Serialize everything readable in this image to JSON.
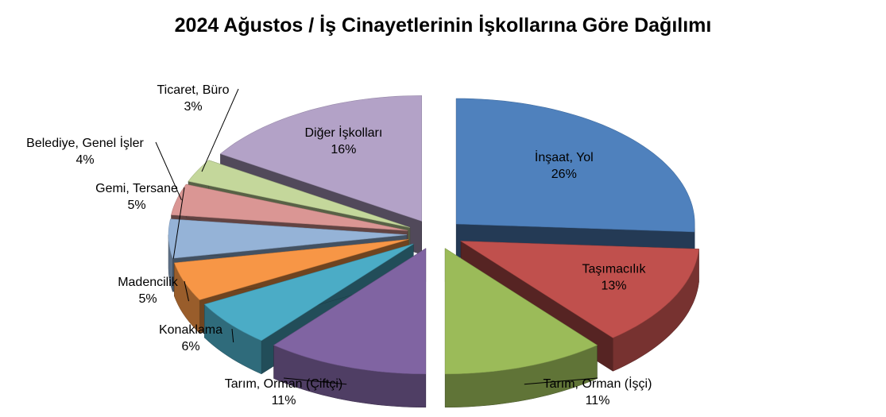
{
  "chart_data": {
    "type": "pie",
    "title": "2024 Ağustos / İş Cinayetlerinin İşkollarına Göre Dağılımı",
    "view": "3d-exploded",
    "categories": [
      "İnşaat, Yol",
      "Taşımacılık",
      "Tarım, Orman (İşçi)",
      "Tarım, Orman (Çiftçi)",
      "Konaklama",
      "Madencilik",
      "Gemi, Tersane",
      "Belediye, Genel İşler",
      "Ticaret, Büro",
      "Diğer İşkolları"
    ],
    "values": [
      26,
      13,
      11,
      11,
      6,
      5,
      5,
      4,
      3,
      16
    ],
    "value_labels": [
      "26%",
      "13%",
      "11%",
      "11%",
      "6%",
      "5%",
      "5%",
      "4%",
      "3%",
      "16%"
    ],
    "colors": [
      "#4f81bd",
      "#c0504d",
      "#9bbb59",
      "#8064a2",
      "#4bacc6",
      "#f79646",
      "#95b3d7",
      "#da9694",
      "#c4d79b",
      "#b3a2c7"
    ],
    "legend": "none"
  }
}
